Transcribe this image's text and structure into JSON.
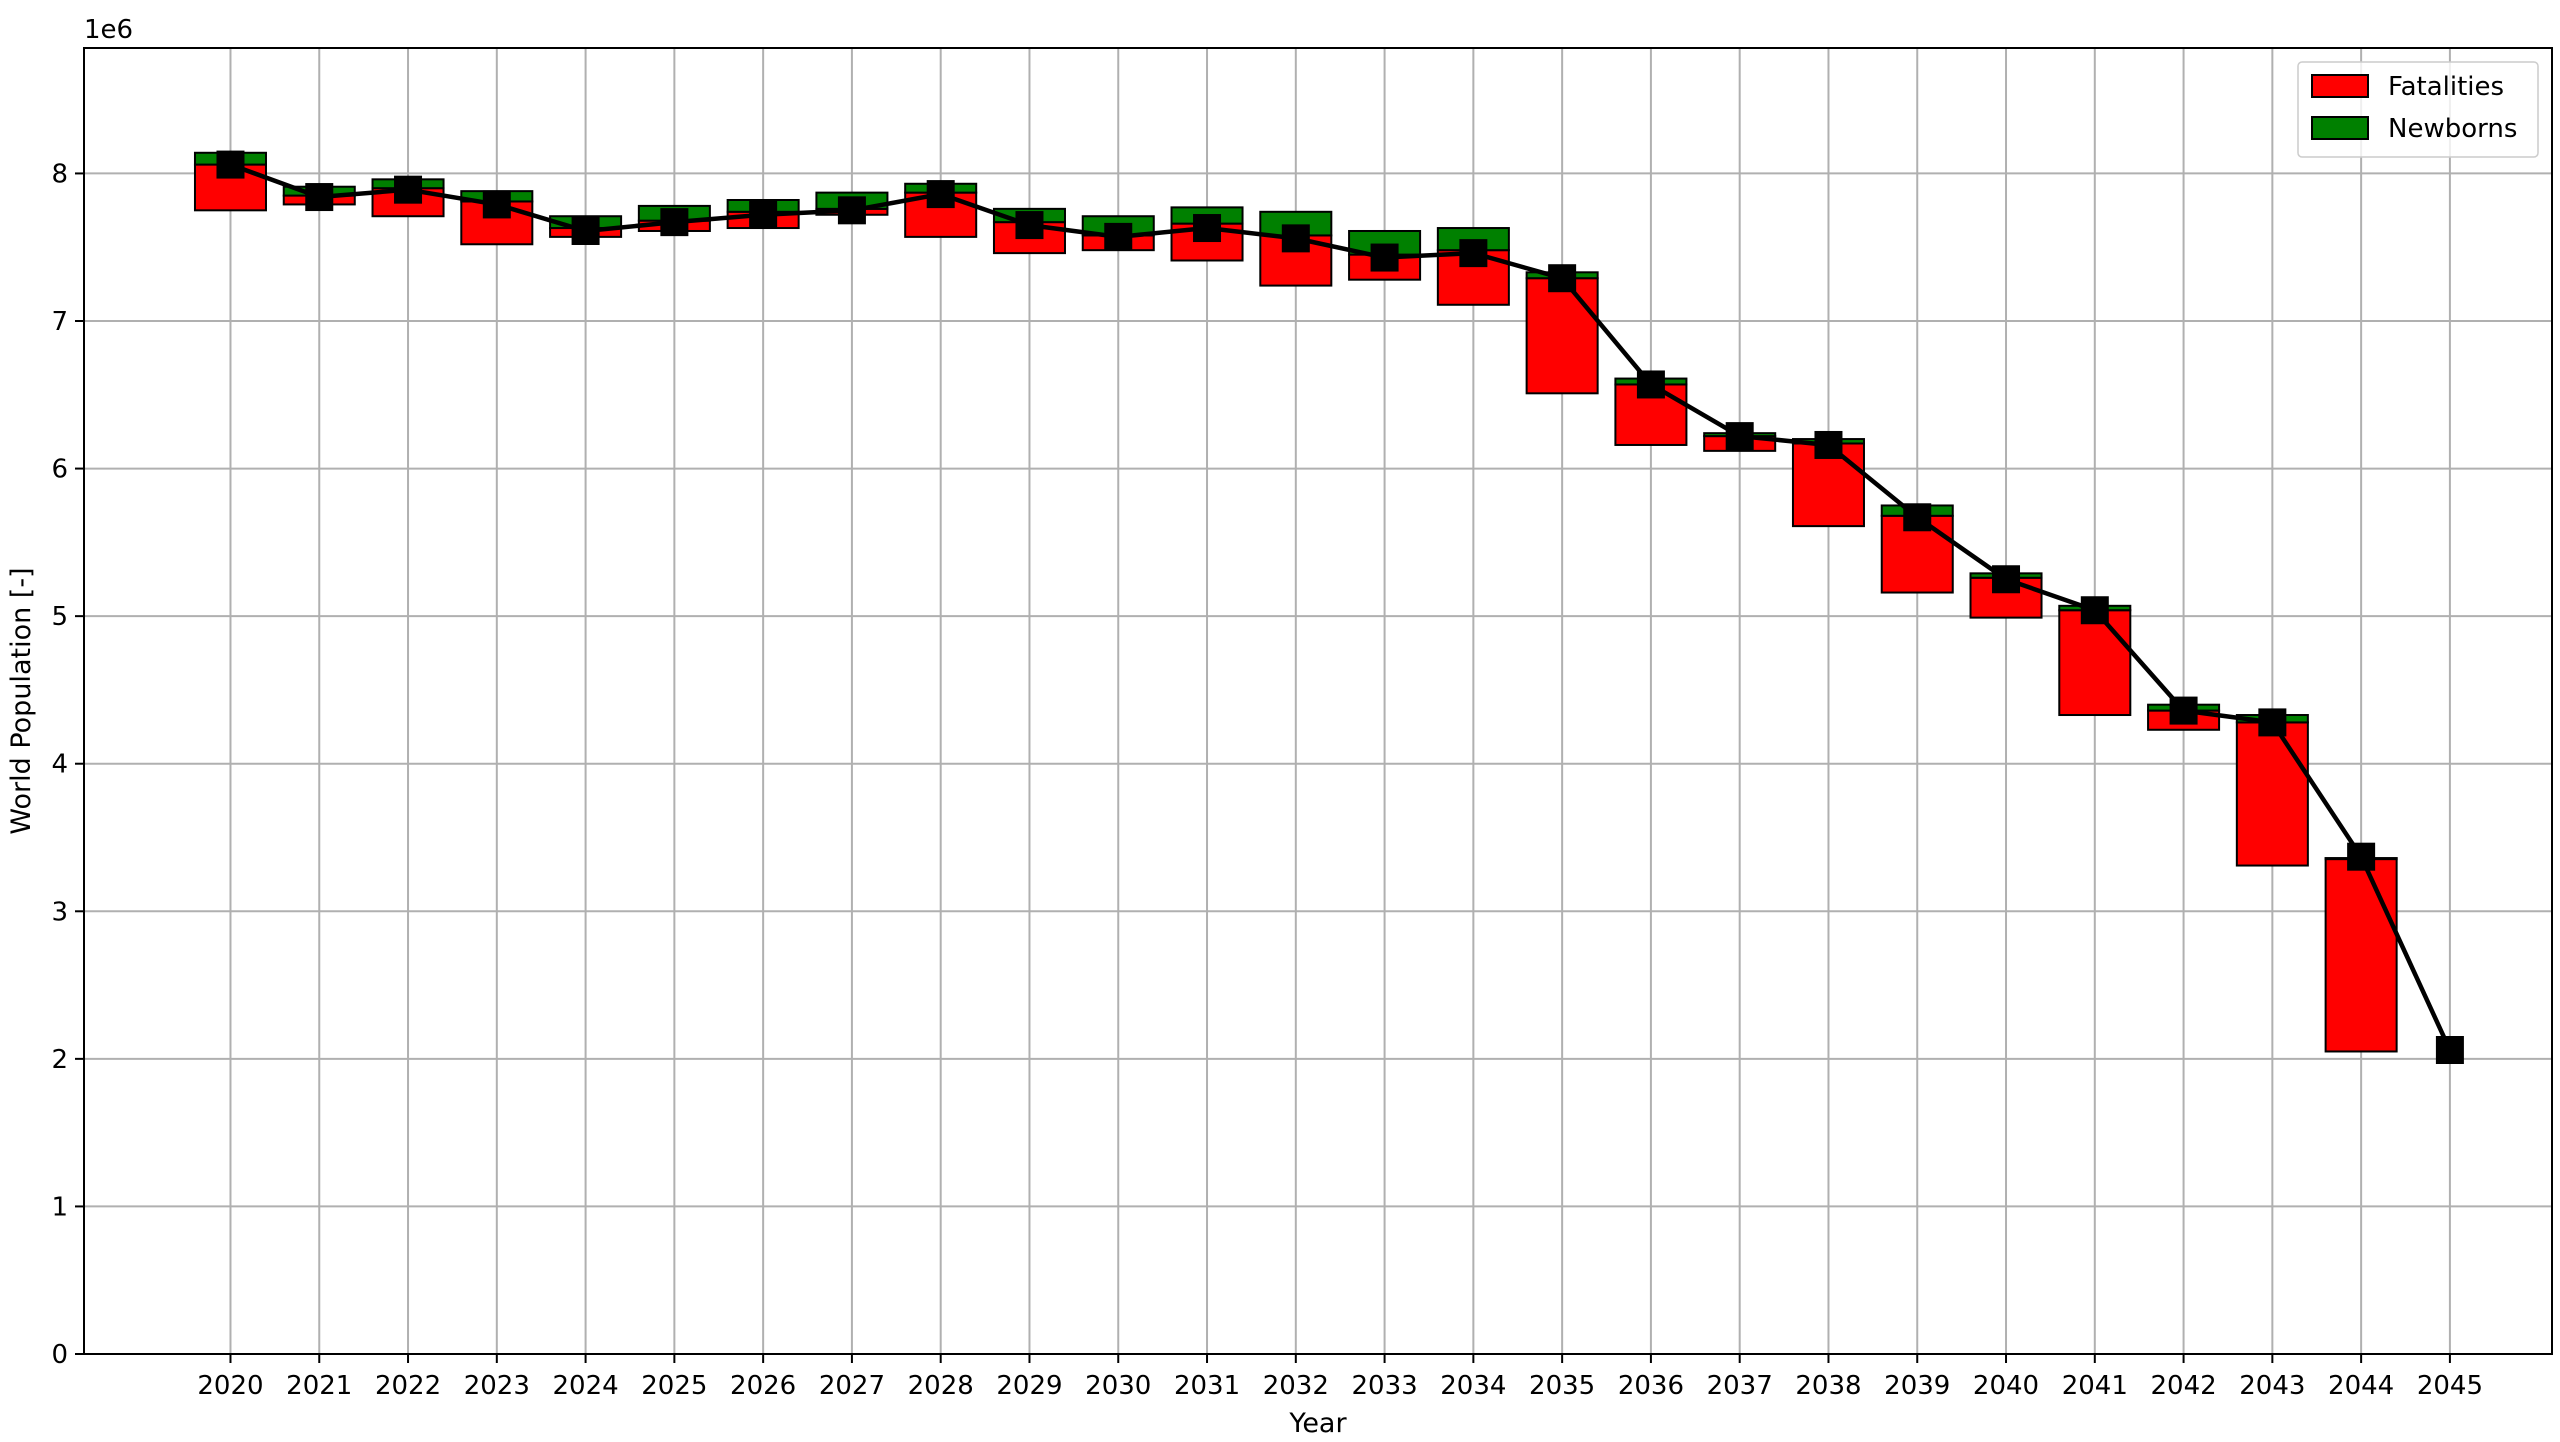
{
  "chart_data": {
    "type": "bar",
    "title": "",
    "xlabel": "Year",
    "ylabel": "World Population [-]",
    "y_offset_label": "1e6",
    "ylim": [
      0,
      8850000
    ],
    "y_ticks": [
      0,
      1,
      2,
      3,
      4,
      5,
      6,
      7,
      8
    ],
    "grid": true,
    "legend_position": "top-right",
    "categories": [
      "2020",
      "2021",
      "2022",
      "2023",
      "2024",
      "2025",
      "2026",
      "2027",
      "2028",
      "2029",
      "2030",
      "2031",
      "2032",
      "2033",
      "2034",
      "2035",
      "2036",
      "2037",
      "2038",
      "2039",
      "2040",
      "2041",
      "2042",
      "2043",
      "2044",
      "2045"
    ],
    "series": [
      {
        "name": "Fatalities",
        "color": "#ff0000",
        "kind": "floating-bar",
        "bottom": [
          7750000,
          7790000,
          7710000,
          7520000,
          7570000,
          7610000,
          7630000,
          7720000,
          7570000,
          7460000,
          7480000,
          7410000,
          7240000,
          7280000,
          7110000,
          6510000,
          6160000,
          6120000,
          5610000,
          5160000,
          4990000,
          4330000,
          4230000,
          3310000,
          2050000,
          null
        ],
        "top": [
          8060000,
          7850000,
          7900000,
          7810000,
          7630000,
          7680000,
          7740000,
          7760000,
          7870000,
          7670000,
          7580000,
          7660000,
          7580000,
          7450000,
          7480000,
          7290000,
          6570000,
          6220000,
          6170000,
          5680000,
          5260000,
          5040000,
          4360000,
          4280000,
          3360000,
          null
        ]
      },
      {
        "name": "Newborns",
        "color": "#008000",
        "kind": "floating-bar",
        "bottom": [
          8060000,
          7850000,
          7900000,
          7810000,
          7630000,
          7680000,
          7740000,
          7760000,
          7870000,
          7670000,
          7580000,
          7660000,
          7580000,
          7450000,
          7480000,
          7290000,
          6570000,
          6220000,
          6170000,
          5680000,
          5260000,
          5040000,
          4360000,
          4280000,
          3360000,
          null
        ],
        "top": [
          8140000,
          7910000,
          7960000,
          7880000,
          7710000,
          7780000,
          7820000,
          7870000,
          7930000,
          7760000,
          7710000,
          7770000,
          7740000,
          7610000,
          7630000,
          7330000,
          6610000,
          6240000,
          6200000,
          5750000,
          5290000,
          5070000,
          4400000,
          4330000,
          3360000,
          null
        ]
      }
    ],
    "line": {
      "color": "#000000",
      "marker": "square",
      "values": [
        8060000,
        7840000,
        7890000,
        7790000,
        7610000,
        7670000,
        7720000,
        7750000,
        7860000,
        7650000,
        7570000,
        7630000,
        7560000,
        7430000,
        7460000,
        7290000,
        6570000,
        6220000,
        6160000,
        5670000,
        5250000,
        5040000,
        4360000,
        4280000,
        3370000,
        2060000
      ]
    }
  }
}
